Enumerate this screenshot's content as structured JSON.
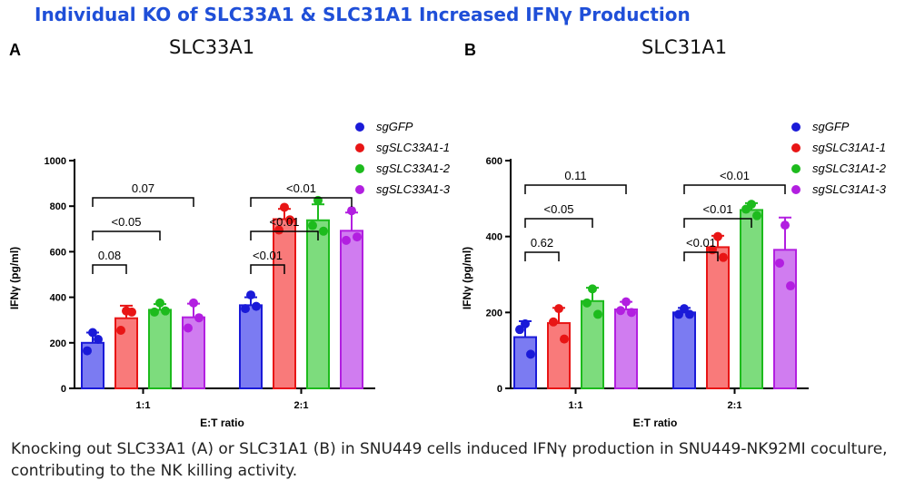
{
  "header": {
    "title": "Individual KO of SLC33A1 & SLC31A1 Increased IFNγ Production"
  },
  "panels": [
    {
      "letter": "A",
      "name": "SLC33A1"
    },
    {
      "letter": "B",
      "name": "SLC31A1"
    }
  ],
  "caption": "Knocking out SLC33A1 (A) or SLC31A1 (B) in SNU449 cells induced IFNγ production in SNU449-NK92MI coculture, contributing to the NK killing activity.",
  "colors": {
    "title": "#1f4fd8",
    "series_edge": [
      "#1a1ad8",
      "#e81515",
      "#1dbb1d",
      "#b21fe0"
    ],
    "series_fill": [
      "#7b7bf2",
      "#f97a7a",
      "#7ddc7d",
      "#d07cf0"
    ]
  },
  "chart_data": [
    {
      "type": "bar",
      "xlabel": "E:T ratio",
      "ylabel": "IFNγ (pg/ml)",
      "ylim": [
        0,
        1000
      ],
      "yticks": [
        0,
        200,
        400,
        600,
        800,
        1000
      ],
      "categories": [
        "1:1",
        "2:1"
      ],
      "legend_position": "right",
      "series": [
        {
          "name": "sgGFP",
          "values": [
            200,
            365
          ],
          "err": [
            45,
            35
          ],
          "points": [
            [
              245,
              165,
              215
            ],
            [
              410,
              350,
              360
            ]
          ]
        },
        {
          "name": "sgSLC33A1-1",
          "values": [
            308,
            743
          ],
          "err": [
            55,
            45
          ],
          "points": [
            [
              340,
              255,
              335
            ],
            [
              795,
              695,
              740
            ]
          ]
        },
        {
          "name": "sgSLC33A1-2",
          "values": [
            345,
            738
          ],
          "err": [
            25,
            70
          ],
          "points": [
            [
              375,
              335,
              340
            ],
            [
              825,
              715,
              690
            ]
          ]
        },
        {
          "name": "sgSLC33A1-3",
          "values": [
            312,
            692
          ],
          "err": [
            60,
            80
          ],
          "points": [
            [
              375,
              265,
              310
            ],
            [
              780,
              650,
              665
            ]
          ]
        }
      ],
      "brackets": [
        {
          "category": "1:1",
          "from": 0,
          "to": 1,
          "label": "0.08"
        },
        {
          "category": "1:1",
          "from": 0,
          "to": 2,
          "label": "<0.05"
        },
        {
          "category": "1:1",
          "from": 0,
          "to": 3,
          "label": "0.07"
        },
        {
          "category": "2:1",
          "from": 0,
          "to": 1,
          "label": "<0.01"
        },
        {
          "category": "2:1",
          "from": 0,
          "to": 2,
          "label": "<0.01"
        },
        {
          "category": "2:1",
          "from": 0,
          "to": 3,
          "label": "<0.01"
        }
      ]
    },
    {
      "type": "bar",
      "xlabel": "E:T ratio",
      "ylabel": "IFNγ (pg/ml)",
      "ylim": [
        0,
        600
      ],
      "yticks": [
        0,
        200,
        400,
        600
      ],
      "categories": [
        "1:1",
        "2:1"
      ],
      "legend_position": "right",
      "series": [
        {
          "name": "sgGFP",
          "values": [
            135,
            200
          ],
          "err": [
            42,
            12
          ],
          "points": [
            [
              170,
              155,
              90
            ],
            [
              210,
              195,
              195
            ]
          ]
        },
        {
          "name": "sgSLC31A1-1",
          "values": [
            172,
            372
          ],
          "err": [
            40,
            30
          ],
          "points": [
            [
              210,
              175,
              130
            ],
            [
              400,
              365,
              345
            ]
          ]
        },
        {
          "name": "sgSLC31A1-2",
          "values": [
            230,
            470
          ],
          "err": [
            35,
            18
          ],
          "points": [
            [
              262,
              225,
              195
            ],
            [
              485,
              472,
              455
            ]
          ]
        },
        {
          "name": "sgSLC31A1-3",
          "values": [
            208,
            365
          ],
          "err": [
            20,
            85
          ],
          "points": [
            [
              228,
              205,
              200
            ],
            [
              430,
              330,
              270
            ]
          ]
        }
      ],
      "brackets": [
        {
          "category": "1:1",
          "from": 0,
          "to": 1,
          "label": "0.62"
        },
        {
          "category": "1:1",
          "from": 0,
          "to": 2,
          "label": "<0.05"
        },
        {
          "category": "1:1",
          "from": 0,
          "to": 3,
          "label": "0.11"
        },
        {
          "category": "2:1",
          "from": 0,
          "to": 1,
          "label": "<0.01"
        },
        {
          "category": "2:1",
          "from": 0,
          "to": 2,
          "label": "<0.01"
        },
        {
          "category": "2:1",
          "from": 0,
          "to": 3,
          "label": "<0.01"
        }
      ]
    }
  ]
}
